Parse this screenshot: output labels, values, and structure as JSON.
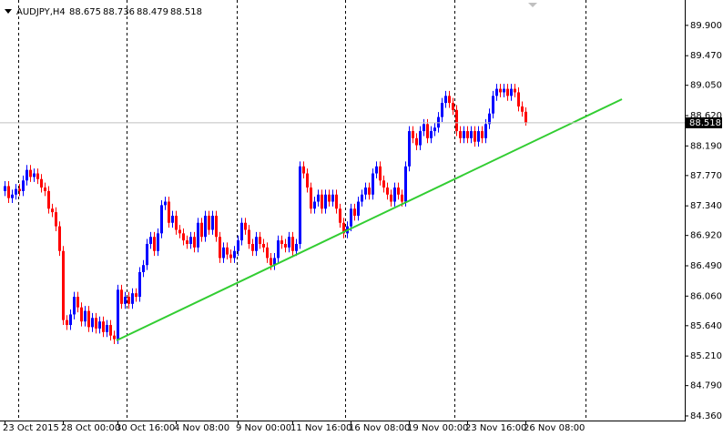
{
  "chart_data": {
    "type": "candlestick",
    "symbol": "AUDJPY,H4",
    "up_color": "#0000ff",
    "down_color": "#ff0000",
    "ylim": [
      84.295,
      90.26
    ],
    "yticks": [
      {
        "value": 89.9,
        "label": "89.900"
      },
      {
        "value": 89.47,
        "label": "89.470"
      },
      {
        "value": 89.05,
        "label": "89.050"
      },
      {
        "value": 88.62,
        "label": "88.620"
      },
      {
        "value": 88.19,
        "label": "88.190"
      },
      {
        "value": 87.77,
        "label": "87.770"
      },
      {
        "value": 87.34,
        "label": "87.340"
      },
      {
        "value": 86.92,
        "label": "86.920"
      },
      {
        "value": 86.49,
        "label": "86.490"
      },
      {
        "value": 86.06,
        "label": "86.060"
      },
      {
        "value": 85.64,
        "label": "85.640"
      },
      {
        "value": 85.21,
        "label": "85.210"
      },
      {
        "value": 84.79,
        "label": "84.790"
      },
      {
        "value": 84.36,
        "label": "84.360"
      }
    ],
    "categories": [
      "23 Oct 2015",
      null,
      null,
      null,
      null,
      null,
      null,
      null,
      null,
      null,
      null,
      null,
      null,
      null,
      null,
      null,
      "28 Oct 00:00",
      null,
      null,
      null,
      null,
      null,
      null,
      null,
      null,
      null,
      null,
      null,
      null,
      null,
      null,
      "30 Oct 16:00",
      null,
      null,
      null,
      null,
      null,
      null,
      null,
      null,
      null,
      null,
      null,
      null,
      null,
      null,
      null,
      "4 Nov 08:00",
      null,
      null,
      null,
      null,
      null,
      null,
      null,
      null,
      null,
      null,
      null,
      null,
      null,
      null,
      null,
      null,
      "9 Nov 00:00",
      null,
      null,
      null,
      null,
      null,
      null,
      null,
      null,
      null,
      null,
      null,
      null,
      null,
      null,
      "11 Nov 16:00",
      null,
      null,
      null,
      null,
      null,
      null,
      null,
      null,
      null,
      null,
      null,
      null,
      null,
      null,
      null,
      "16 Nov 08:00",
      null,
      null,
      null,
      null,
      null,
      null,
      null,
      null,
      null,
      null,
      null,
      null,
      null,
      null,
      null,
      "19 Nov 00:00",
      null,
      null,
      null,
      null,
      null,
      null,
      null,
      null,
      null,
      null,
      null,
      null,
      null,
      null,
      null,
      "23 Nov 16:00",
      null,
      null,
      null,
      null,
      null,
      null,
      null,
      null,
      null,
      null,
      null,
      null,
      null,
      null,
      null,
      "26 Nov 08:00"
    ],
    "ohlc": [
      [
        87.55,
        87.69,
        87.48,
        87.62
      ],
      [
        87.62,
        87.69,
        87.38,
        87.45
      ],
      [
        87.45,
        87.57,
        87.38,
        87.5
      ],
      [
        87.5,
        87.65,
        87.43,
        87.58
      ],
      [
        87.58,
        87.65,
        87.48,
        87.55
      ],
      [
        87.55,
        87.77,
        87.48,
        87.7
      ],
      [
        87.7,
        87.92,
        87.63,
        87.85
      ],
      [
        87.85,
        87.92,
        87.68,
        87.75
      ],
      [
        87.75,
        87.87,
        87.68,
        87.8
      ],
      [
        87.8,
        87.87,
        87.65,
        87.72
      ],
      [
        87.72,
        87.79,
        87.53,
        87.6
      ],
      [
        87.6,
        87.67,
        87.48,
        87.55
      ],
      [
        87.55,
        87.62,
        87.23,
        87.3
      ],
      [
        87.3,
        87.37,
        87.18,
        87.25
      ],
      [
        87.25,
        87.32,
        86.98,
        87.05
      ],
      [
        87.05,
        87.12,
        86.63,
        86.7
      ],
      [
        86.7,
        86.77,
        85.65,
        85.72
      ],
      [
        85.72,
        85.79,
        85.58,
        85.65
      ],
      [
        85.65,
        85.87,
        85.58,
        85.8
      ],
      [
        85.8,
        86.12,
        85.73,
        86.05
      ],
      [
        86.05,
        86.12,
        85.83,
        85.9
      ],
      [
        85.9,
        85.97,
        85.63,
        85.7
      ],
      [
        85.7,
        85.92,
        85.63,
        85.85
      ],
      [
        85.85,
        85.92,
        85.55,
        85.62
      ],
      [
        85.62,
        85.82,
        85.55,
        85.75
      ],
      [
        85.75,
        85.82,
        85.53,
        85.6
      ],
      [
        85.6,
        85.77,
        85.53,
        85.7
      ],
      [
        85.7,
        85.77,
        85.48,
        85.55
      ],
      [
        85.55,
        85.72,
        85.48,
        85.65
      ],
      [
        85.65,
        85.72,
        85.43,
        85.5
      ],
      [
        85.5,
        85.57,
        85.38,
        85.45
      ],
      [
        85.45,
        86.22,
        85.38,
        86.15
      ],
      [
        86.15,
        86.22,
        85.88,
        85.95
      ],
      [
        85.95,
        86.12,
        85.88,
        86.05
      ],
      [
        86.05,
        86.12,
        85.88,
        85.95
      ],
      [
        85.95,
        86.17,
        85.88,
        86.1
      ],
      [
        86.1,
        86.17,
        85.98,
        86.05
      ],
      [
        86.05,
        86.47,
        85.98,
        86.4
      ],
      [
        86.4,
        86.57,
        86.33,
        86.5
      ],
      [
        86.5,
        86.87,
        86.43,
        86.8
      ],
      [
        86.8,
        86.97,
        86.73,
        86.9
      ],
      [
        86.9,
        86.97,
        86.63,
        86.7
      ],
      [
        86.7,
        87.02,
        86.63,
        86.95
      ],
      [
        86.95,
        87.42,
        86.88,
        87.35
      ],
      [
        87.35,
        87.47,
        87.28,
        87.4
      ],
      [
        87.4,
        87.47,
        87.03,
        87.1
      ],
      [
        87.1,
        87.27,
        87.03,
        87.2
      ],
      [
        87.2,
        87.27,
        86.93,
        87.0
      ],
      [
        87.0,
        87.07,
        86.88,
        86.95
      ],
      [
        86.95,
        87.02,
        86.78,
        86.85
      ],
      [
        86.85,
        86.92,
        86.73,
        86.8
      ],
      [
        86.8,
        86.97,
        86.73,
        86.9
      ],
      [
        86.9,
        86.97,
        86.68,
        86.75
      ],
      [
        86.75,
        87.17,
        86.68,
        87.1
      ],
      [
        87.1,
        87.17,
        86.83,
        86.9
      ],
      [
        86.9,
        87.27,
        86.83,
        87.2
      ],
      [
        87.2,
        87.27,
        86.93,
        87.0
      ],
      [
        87.0,
        87.27,
        86.93,
        87.2
      ],
      [
        87.2,
        87.27,
        86.83,
        86.9
      ],
      [
        86.9,
        86.97,
        86.53,
        86.6
      ],
      [
        86.6,
        86.82,
        86.53,
        86.75
      ],
      [
        86.75,
        86.82,
        86.58,
        86.65
      ],
      [
        86.65,
        86.72,
        86.53,
        86.6
      ],
      [
        86.6,
        86.77,
        86.53,
        86.7
      ],
      [
        86.7,
        86.92,
        86.63,
        86.85
      ],
      [
        86.85,
        87.17,
        86.78,
        87.1
      ],
      [
        87.1,
        87.17,
        86.93,
        87.0
      ],
      [
        87.0,
        87.07,
        86.73,
        86.8
      ],
      [
        86.8,
        86.87,
        86.63,
        86.7
      ],
      [
        86.7,
        86.97,
        86.63,
        86.9
      ],
      [
        86.9,
        86.97,
        86.73,
        86.8
      ],
      [
        86.8,
        86.87,
        86.68,
        86.75
      ],
      [
        86.75,
        86.82,
        86.53,
        86.6
      ],
      [
        86.6,
        86.67,
        86.43,
        86.5
      ],
      [
        86.5,
        86.67,
        86.43,
        86.6
      ],
      [
        86.6,
        86.92,
        86.53,
        86.85
      ],
      [
        86.85,
        86.92,
        86.73,
        86.8
      ],
      [
        86.8,
        86.87,
        86.68,
        86.75
      ],
      [
        86.75,
        86.97,
        86.68,
        86.9
      ],
      [
        86.9,
        86.97,
        86.63,
        86.7
      ],
      [
        86.7,
        86.87,
        86.63,
        86.8
      ],
      [
        86.8,
        87.97,
        86.73,
        87.9
      ],
      [
        87.9,
        87.97,
        87.73,
        87.8
      ],
      [
        87.8,
        87.87,
        87.53,
        87.6
      ],
      [
        87.6,
        87.67,
        87.23,
        87.3
      ],
      [
        87.3,
        87.47,
        87.23,
        87.4
      ],
      [
        87.4,
        87.57,
        87.33,
        87.5
      ],
      [
        87.5,
        87.57,
        87.23,
        87.3
      ],
      [
        87.3,
        87.57,
        87.23,
        87.5
      ],
      [
        87.5,
        87.57,
        87.33,
        87.4
      ],
      [
        87.4,
        87.57,
        87.33,
        87.5
      ],
      [
        87.5,
        87.57,
        87.23,
        87.3
      ],
      [
        87.3,
        87.37,
        87.03,
        87.1
      ],
      [
        87.1,
        87.17,
        86.88,
        86.95
      ],
      [
        86.95,
        87.12,
        86.88,
        87.05
      ],
      [
        87.05,
        87.37,
        86.98,
        87.3
      ],
      [
        87.3,
        87.37,
        87.13,
        87.2
      ],
      [
        87.2,
        87.47,
        87.13,
        87.4
      ],
      [
        87.4,
        87.57,
        87.33,
        87.5
      ],
      [
        87.5,
        87.67,
        87.43,
        87.6
      ],
      [
        87.6,
        87.67,
        87.43,
        87.5
      ],
      [
        87.5,
        87.87,
        87.43,
        87.8
      ],
      [
        87.8,
        87.97,
        87.73,
        87.9
      ],
      [
        87.9,
        87.97,
        87.63,
        87.7
      ],
      [
        87.7,
        87.77,
        87.53,
        87.6
      ],
      [
        87.6,
        87.67,
        87.43,
        87.5
      ],
      [
        87.5,
        87.57,
        87.33,
        87.4
      ],
      [
        87.4,
        87.67,
        87.33,
        87.6
      ],
      [
        87.6,
        87.67,
        87.43,
        87.5
      ],
      [
        87.5,
        87.57,
        87.33,
        87.4
      ],
      [
        87.4,
        87.97,
        87.33,
        87.9
      ],
      [
        87.9,
        88.47,
        87.83,
        88.4
      ],
      [
        88.4,
        88.47,
        88.23,
        88.3
      ],
      [
        88.3,
        88.37,
        88.13,
        88.2
      ],
      [
        88.2,
        88.47,
        88.13,
        88.4
      ],
      [
        88.4,
        88.57,
        88.33,
        88.5
      ],
      [
        88.5,
        88.57,
        88.23,
        88.3
      ],
      [
        88.3,
        88.47,
        88.23,
        88.4
      ],
      [
        88.4,
        88.52,
        88.33,
        88.45
      ],
      [
        88.45,
        88.67,
        88.38,
        88.6
      ],
      [
        88.6,
        88.87,
        88.53,
        88.8
      ],
      [
        88.8,
        88.97,
        88.73,
        88.9
      ],
      [
        88.9,
        88.97,
        88.73,
        88.8
      ],
      [
        88.8,
        88.87,
        88.63,
        88.7
      ],
      [
        88.7,
        88.77,
        88.33,
        88.4
      ],
      [
        88.4,
        88.47,
        88.23,
        88.3
      ],
      [
        88.3,
        88.47,
        88.23,
        88.4
      ],
      [
        88.4,
        88.47,
        88.23,
        88.3
      ],
      [
        88.3,
        88.47,
        88.23,
        88.4
      ],
      [
        88.4,
        88.47,
        88.18,
        88.25
      ],
      [
        88.25,
        88.47,
        88.18,
        88.4
      ],
      [
        88.4,
        88.47,
        88.23,
        88.3
      ],
      [
        88.3,
        88.57,
        88.23,
        88.5
      ],
      [
        88.5,
        88.72,
        88.43,
        88.65
      ],
      [
        88.65,
        88.97,
        88.58,
        88.9
      ],
      [
        88.9,
        89.07,
        88.83,
        89.0
      ],
      [
        89.0,
        89.07,
        88.88,
        88.95
      ],
      [
        88.95,
        89.07,
        88.88,
        89.0
      ],
      [
        89.0,
        89.07,
        88.83,
        88.9
      ],
      [
        88.9,
        89.07,
        88.83,
        89.0
      ],
      [
        89.0,
        89.07,
        88.88,
        88.95
      ],
      [
        88.95,
        89.02,
        88.68,
        88.75
      ],
      [
        88.75,
        88.82,
        88.605,
        88.675
      ],
      [
        88.675,
        88.736,
        88.479,
        88.518
      ]
    ]
  }
}
